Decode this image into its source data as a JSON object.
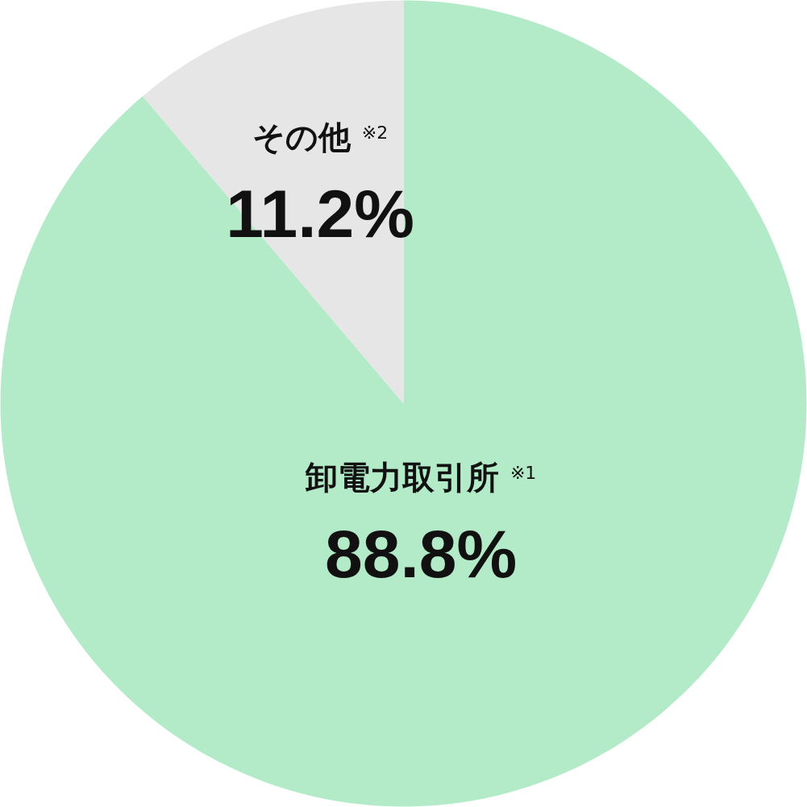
{
  "chart_data": {
    "type": "pie",
    "categories": [
      "卸電力取引所 $^{※1}$",
      "その他 $^{※2}$"
    ],
    "values": [
      88.8,
      11.2
    ],
    "colors": [
      "#b3ebc8",
      "#e6e6e6"
    ],
    "value_labels": [
      "88.8%",
      "11.2%"
    ]
  }
}
